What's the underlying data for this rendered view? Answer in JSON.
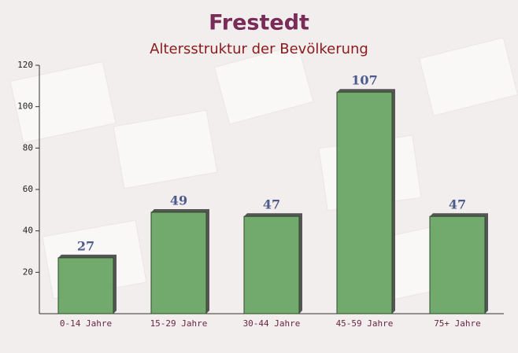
{
  "chart_data": {
    "type": "bar",
    "title": "Frestedt",
    "subtitle": "Altersstruktur der Bevölkerung",
    "categories": [
      "0-14 Jahre",
      "15-29 Jahre",
      "30-44 Jahre",
      "45-59 Jahre",
      "75+ Jahre"
    ],
    "values": [
      27,
      49,
      47,
      107,
      47
    ],
    "color": "#6aa464",
    "ylim": [
      0,
      120
    ],
    "yticks": [
      20,
      40,
      60,
      80,
      100,
      120
    ],
    "grid": false
  }
}
